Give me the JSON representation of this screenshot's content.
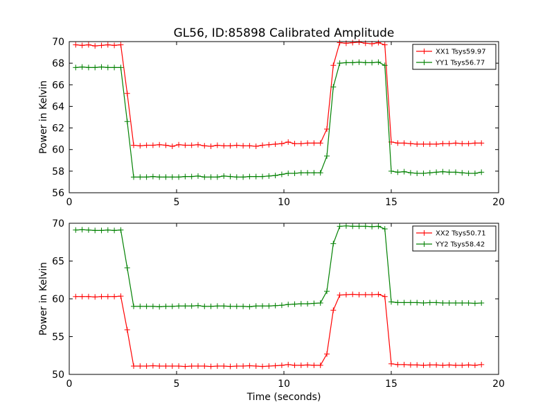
{
  "figure_title": "GL56, ID:85898 Calibrated Amplitude",
  "chart_data": [
    {
      "type": "line",
      "title": "GL56, ID:85898 Calibrated Amplitude",
      "xlabel": "",
      "ylabel": "Power in Kelvin",
      "xlim": [
        0,
        20
      ],
      "ylim": [
        56,
        70
      ],
      "xticks": [
        0,
        5,
        10,
        15,
        20
      ],
      "yticks": [
        56,
        58,
        60,
        62,
        64,
        66,
        68,
        70
      ],
      "legend_position": "top-right",
      "grid": false,
      "x": [
        0.3,
        0.6,
        0.9,
        1.2,
        1.5,
        1.8,
        2.1,
        2.4,
        2.7,
        3.0,
        3.3,
        3.6,
        3.9,
        4.2,
        4.5,
        4.8,
        5.1,
        5.4,
        5.7,
        6.0,
        6.3,
        6.6,
        6.9,
        7.2,
        7.5,
        7.8,
        8.1,
        8.4,
        8.7,
        9.0,
        9.3,
        9.6,
        9.9,
        10.2,
        10.5,
        10.8,
        11.1,
        11.4,
        11.7,
        12.0,
        12.3,
        12.6,
        12.9,
        13.2,
        13.5,
        13.8,
        14.1,
        14.4,
        14.7,
        15.0,
        15.3,
        15.6,
        15.9,
        16.2,
        16.5,
        16.8,
        17.1,
        17.4,
        17.7,
        18.0,
        18.3,
        18.6,
        18.9,
        19.2
      ],
      "series": [
        {
          "name": "XX1 Tsys59.97",
          "color": "#ff0000",
          "values": [
            69.7,
            69.65,
            69.7,
            69.6,
            69.65,
            69.7,
            69.65,
            69.7,
            65.2,
            60.4,
            60.35,
            60.4,
            60.4,
            60.45,
            60.4,
            60.3,
            60.45,
            60.4,
            60.4,
            60.45,
            60.35,
            60.3,
            60.4,
            60.35,
            60.35,
            60.4,
            60.35,
            60.35,
            60.3,
            60.4,
            60.45,
            60.5,
            60.55,
            60.7,
            60.55,
            60.55,
            60.6,
            60.6,
            60.6,
            61.9,
            67.8,
            69.9,
            69.85,
            69.9,
            69.95,
            69.85,
            69.8,
            69.9,
            69.7,
            60.7,
            60.6,
            60.6,
            60.55,
            60.5,
            60.5,
            60.5,
            60.5,
            60.55,
            60.55,
            60.6,
            60.55,
            60.55,
            60.6,
            60.6
          ]
        },
        {
          "name": "YY1 Tsys56.77",
          "color": "#008000",
          "values": [
            67.6,
            67.65,
            67.6,
            67.6,
            67.65,
            67.6,
            67.6,
            67.6,
            62.6,
            57.45,
            57.45,
            57.45,
            57.5,
            57.45,
            57.45,
            57.45,
            57.45,
            57.5,
            57.5,
            57.55,
            57.45,
            57.45,
            57.45,
            57.55,
            57.5,
            57.45,
            57.45,
            57.5,
            57.5,
            57.5,
            57.55,
            57.6,
            57.7,
            57.8,
            57.8,
            57.85,
            57.85,
            57.85,
            57.85,
            59.4,
            65.8,
            68.0,
            68.05,
            68.05,
            68.1,
            68.05,
            68.05,
            68.1,
            67.8,
            58.0,
            57.9,
            57.95,
            57.85,
            57.8,
            57.8,
            57.85,
            57.9,
            57.95,
            57.9,
            57.9,
            57.85,
            57.8,
            57.8,
            57.9
          ]
        }
      ]
    },
    {
      "type": "line",
      "title": "",
      "xlabel": "Time (seconds)",
      "ylabel": "Power in Kelvin",
      "xlim": [
        0,
        20
      ],
      "ylim": [
        50,
        70
      ],
      "xticks": [
        0,
        5,
        10,
        15,
        20
      ],
      "yticks": [
        50,
        55,
        60,
        65,
        70
      ],
      "legend_position": "top-right",
      "grid": false,
      "x": [
        0.3,
        0.6,
        0.9,
        1.2,
        1.5,
        1.8,
        2.1,
        2.4,
        2.7,
        3.0,
        3.3,
        3.6,
        3.9,
        4.2,
        4.5,
        4.8,
        5.1,
        5.4,
        5.7,
        6.0,
        6.3,
        6.6,
        6.9,
        7.2,
        7.5,
        7.8,
        8.1,
        8.4,
        8.7,
        9.0,
        9.3,
        9.6,
        9.9,
        10.2,
        10.5,
        10.8,
        11.1,
        11.4,
        11.7,
        12.0,
        12.3,
        12.6,
        12.9,
        13.2,
        13.5,
        13.8,
        14.1,
        14.4,
        14.7,
        15.0,
        15.3,
        15.6,
        15.9,
        16.2,
        16.5,
        16.8,
        17.1,
        17.4,
        17.7,
        18.0,
        18.3,
        18.6,
        18.9,
        19.2
      ],
      "series": [
        {
          "name": "XX2 Tsys50.71",
          "color": "#ff0000",
          "values": [
            60.3,
            60.3,
            60.3,
            60.25,
            60.3,
            60.3,
            60.3,
            60.35,
            55.9,
            51.1,
            51.1,
            51.1,
            51.15,
            51.1,
            51.1,
            51.1,
            51.1,
            51.05,
            51.1,
            51.1,
            51.1,
            51.05,
            51.1,
            51.1,
            51.05,
            51.1,
            51.1,
            51.15,
            51.1,
            51.05,
            51.1,
            51.15,
            51.2,
            51.3,
            51.2,
            51.2,
            51.25,
            51.2,
            51.2,
            52.7,
            58.5,
            60.5,
            60.55,
            60.6,
            60.55,
            60.55,
            60.55,
            60.6,
            60.3,
            51.4,
            51.3,
            51.3,
            51.25,
            51.25,
            51.2,
            51.25,
            51.25,
            51.2,
            51.25,
            51.2,
            51.2,
            51.25,
            51.2,
            51.3
          ]
        },
        {
          "name": "YY2 Tsys58.42",
          "color": "#008000",
          "values": [
            69.1,
            69.15,
            69.1,
            69.05,
            69.05,
            69.1,
            69.05,
            69.1,
            64.1,
            59.0,
            59.0,
            59.0,
            59.0,
            58.95,
            59.0,
            59.0,
            59.05,
            59.05,
            59.05,
            59.1,
            59.0,
            59.0,
            59.05,
            59.05,
            59.0,
            59.0,
            59.0,
            58.95,
            59.05,
            59.05,
            59.05,
            59.1,
            59.15,
            59.25,
            59.3,
            59.35,
            59.35,
            59.4,
            59.45,
            61.0,
            67.3,
            69.6,
            69.65,
            69.6,
            69.6,
            69.6,
            69.55,
            69.6,
            69.25,
            59.6,
            59.5,
            59.5,
            59.5,
            59.5,
            59.45,
            59.5,
            59.5,
            59.45,
            59.45,
            59.45,
            59.45,
            59.45,
            59.4,
            59.45
          ]
        }
      ]
    }
  ]
}
